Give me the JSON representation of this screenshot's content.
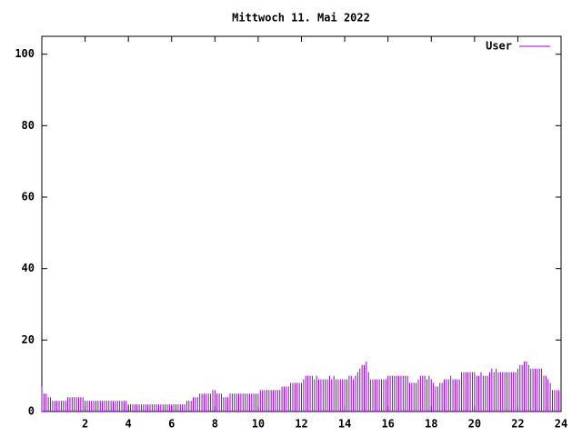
{
  "chart_data": {
    "type": "impulses",
    "title": "Mittwoch 11. Mai 2022",
    "xlim": [
      0,
      24
    ],
    "xticks": [
      2,
      4,
      6,
      8,
      10,
      12,
      14,
      16,
      18,
      20,
      22,
      24
    ],
    "ylim": [
      0,
      105
    ],
    "yticks": [
      0,
      20,
      40,
      60,
      80,
      100
    ],
    "legend": "top-right",
    "series": [
      {
        "name": "User",
        "color": "#9400d3",
        "x": [
          0,
          0.1,
          0.2,
          0.3,
          0.4,
          0.5,
          0.6,
          0.7,
          0.8,
          0.9,
          1,
          1.1,
          1.2,
          1.3,
          1.4,
          1.5,
          1.6,
          1.7,
          1.8,
          1.9,
          2,
          2.1,
          2.2,
          2.3,
          2.4,
          2.5,
          2.6,
          2.7,
          2.8,
          2.9,
          3,
          3.1,
          3.2,
          3.3,
          3.4,
          3.5,
          3.6,
          3.7,
          3.8,
          3.9,
          4,
          4.1,
          4.2,
          4.3,
          4.4,
          4.5,
          4.6,
          4.7,
          4.8,
          4.9,
          5,
          5.1,
          5.2,
          5.3,
          5.4,
          5.5,
          5.6,
          5.7,
          5.8,
          5.9,
          6,
          6.1,
          6.2,
          6.3,
          6.4,
          6.5,
          6.6,
          6.7,
          6.8,
          6.9,
          7,
          7.1,
          7.2,
          7.3,
          7.4,
          7.5,
          7.6,
          7.7,
          7.8,
          7.9,
          8,
          8.1,
          8.2,
          8.3,
          8.4,
          8.5,
          8.6,
          8.7,
          8.8,
          8.9,
          9,
          9.1,
          9.2,
          9.3,
          9.4,
          9.5,
          9.6,
          9.7,
          9.8,
          9.9,
          10,
          10.1,
          10.2,
          10.3,
          10.4,
          10.5,
          10.6,
          10.7,
          10.8,
          10.9,
          11,
          11.1,
          11.2,
          11.3,
          11.4,
          11.5,
          11.6,
          11.7,
          11.8,
          11.9,
          12,
          12.1,
          12.2,
          12.3,
          12.4,
          12.5,
          12.6,
          12.7,
          12.8,
          12.9,
          13,
          13.1,
          13.2,
          13.3,
          13.4,
          13.5,
          13.6,
          13.7,
          13.8,
          13.9,
          14,
          14.1,
          14.2,
          14.3,
          14.4,
          14.5,
          14.6,
          14.7,
          14.8,
          14.9,
          15,
          15.1,
          15.2,
          15.3,
          15.4,
          15.5,
          15.6,
          15.7,
          15.8,
          15.9,
          16,
          16.1,
          16.2,
          16.3,
          16.4,
          16.5,
          16.6,
          16.7,
          16.8,
          16.9,
          17,
          17.1,
          17.2,
          17.3,
          17.4,
          17.5,
          17.6,
          17.7,
          17.8,
          17.9,
          18,
          18.1,
          18.2,
          18.3,
          18.4,
          18.5,
          18.6,
          18.7,
          18.8,
          18.9,
          19,
          19.1,
          19.2,
          19.3,
          19.4,
          19.5,
          19.6,
          19.7,
          19.8,
          19.9,
          20,
          20.1,
          20.2,
          20.3,
          20.4,
          20.5,
          20.6,
          20.7,
          20.8,
          20.9,
          21,
          21.1,
          21.2,
          21.3,
          21.4,
          21.5,
          21.6,
          21.7,
          21.8,
          21.9,
          22,
          22.1,
          22.2,
          22.3,
          22.4,
          22.5,
          22.6,
          22.7,
          22.8,
          22.9,
          23,
          23.1,
          23.2,
          23.3,
          23.4,
          23.5,
          23.6,
          23.7,
          23.8,
          23.9
        ],
        "values": [
          7,
          5,
          5,
          4,
          4,
          3,
          3,
          3,
          3,
          3,
          3,
          3,
          4,
          4,
          4,
          4,
          4,
          4,
          4,
          4,
          3,
          3,
          3,
          3,
          3,
          3,
          3,
          3,
          3,
          3,
          3,
          3,
          3,
          3,
          3,
          3,
          3,
          3,
          3,
          3,
          2,
          2,
          2,
          2,
          2,
          2,
          2,
          2,
          2,
          2,
          2,
          2,
          2,
          2,
          2,
          2,
          2,
          2,
          2,
          2,
          2,
          2,
          2,
          2,
          2,
          2,
          2,
          3,
          3,
          3,
          4,
          4,
          4,
          5,
          5,
          5,
          5,
          5,
          5,
          6,
          6,
          5,
          5,
          5,
          4,
          4,
          4,
          5,
          5,
          5,
          5,
          5,
          5,
          5,
          5,
          5,
          5,
          5,
          5,
          5,
          5,
          6,
          6,
          6,
          6,
          6,
          6,
          6,
          6,
          6,
          6,
          7,
          7,
          7,
          7,
          8,
          8,
          8,
          8,
          8,
          8,
          9,
          10,
          10,
          10,
          10,
          9,
          10,
          9,
          9,
          9,
          9,
          9,
          10,
          9,
          10,
          9,
          9,
          9,
          9,
          9,
          9,
          10,
          10,
          9,
          10,
          11,
          12,
          13,
          13,
          14,
          11,
          9,
          9,
          9,
          9,
          9,
          9,
          9,
          9,
          10,
          10,
          10,
          10,
          10,
          10,
          10,
          10,
          10,
          10,
          8,
          8,
          8,
          8,
          9,
          10,
          10,
          10,
          9,
          10,
          9,
          8,
          7,
          7,
          8,
          8,
          9,
          9,
          9,
          10,
          9,
          9,
          9,
          9,
          11,
          11,
          11,
          11,
          11,
          11,
          11,
          10,
          10,
          11,
          10,
          10,
          10,
          11,
          12,
          11,
          12,
          11,
          11,
          11,
          11,
          11,
          11,
          11,
          11,
          11,
          12,
          13,
          13,
          14,
          14,
          13,
          12,
          12,
          12,
          12,
          12,
          12,
          10,
          10,
          9,
          8,
          6,
          6,
          6,
          6
        ]
      }
    ]
  }
}
